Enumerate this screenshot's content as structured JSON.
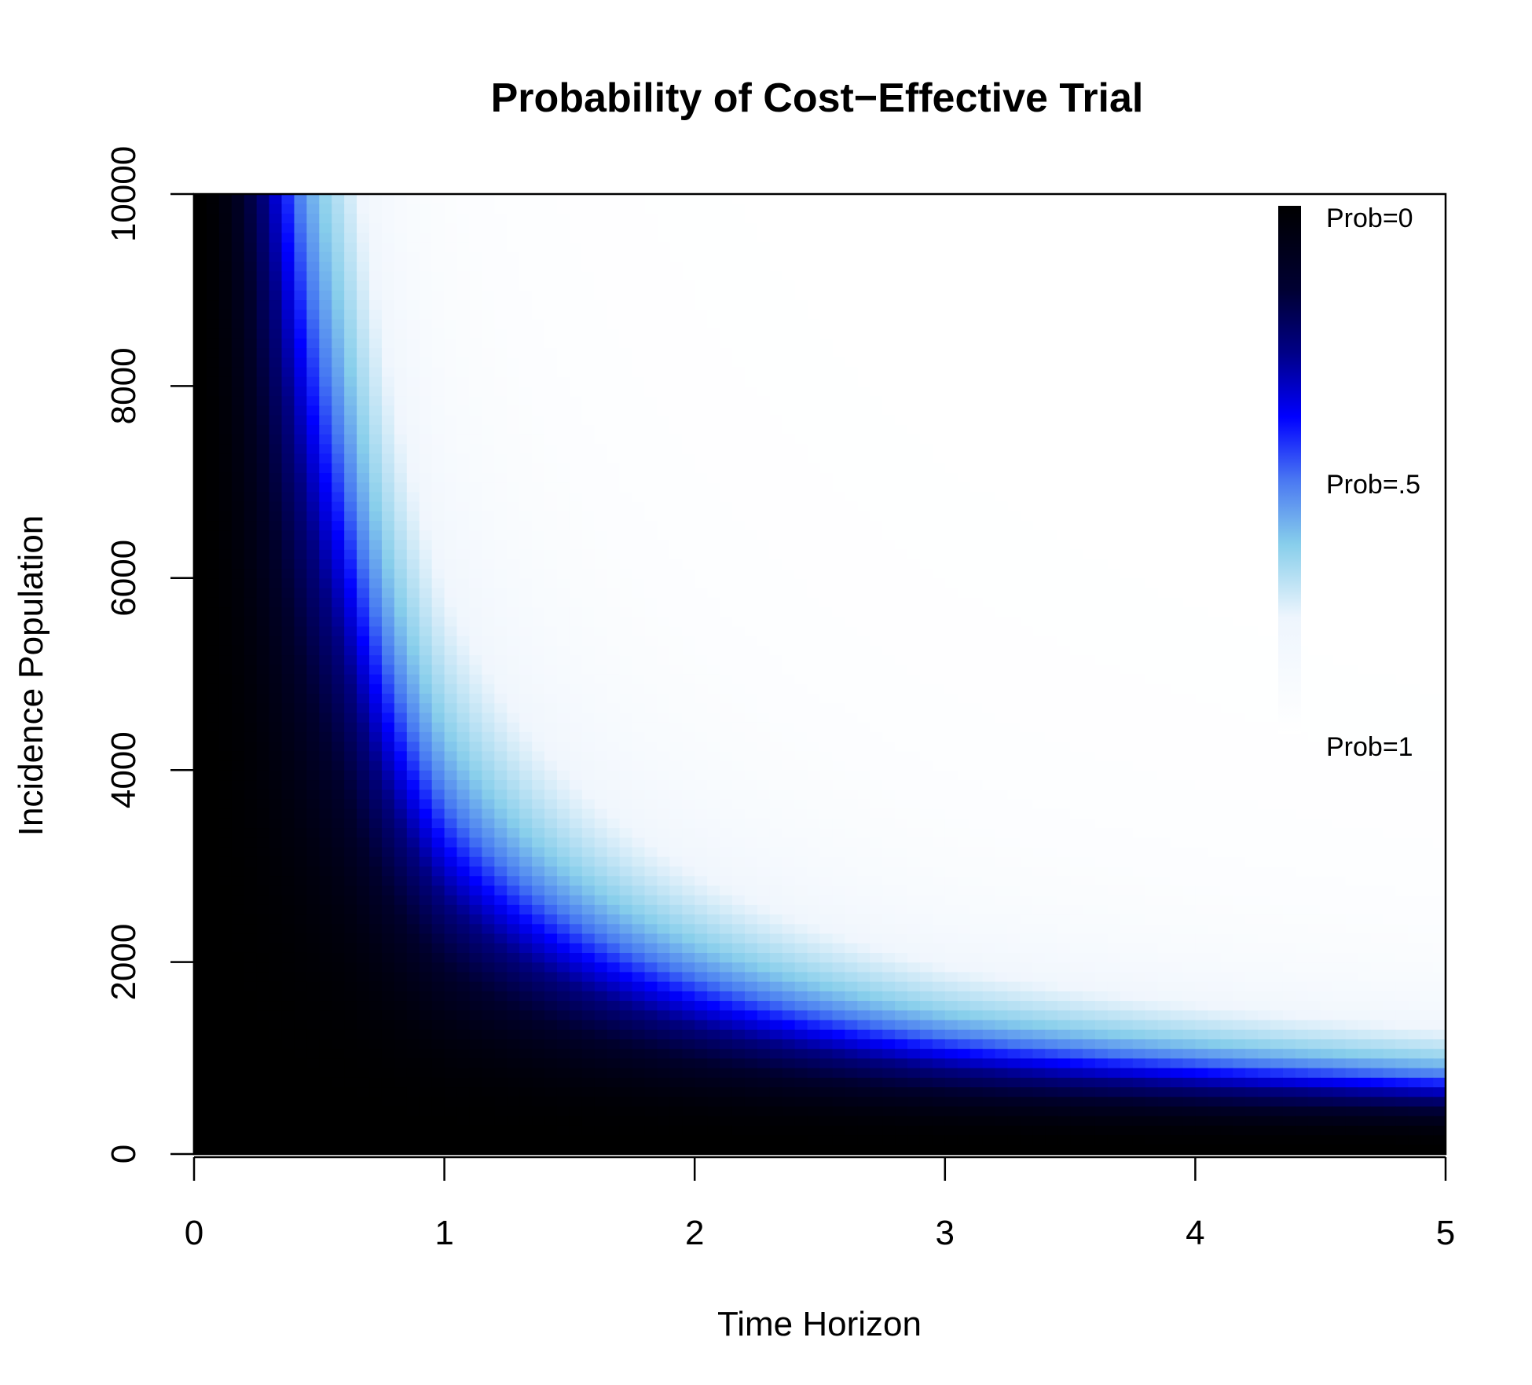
{
  "chart_data": {
    "type": "heatmap",
    "title": "Probability of Cost−Effective Trial",
    "xlabel": "Time Horizon",
    "ylabel": "Incidence Population",
    "xlim": [
      0,
      5
    ],
    "ylim": [
      0,
      10000
    ],
    "xticks": [
      "0",
      "1",
      "2",
      "3",
      "4",
      "5"
    ],
    "yticks": [
      "0",
      "2000",
      "4000",
      "6000",
      "8000",
      "10000"
    ],
    "grid": false,
    "model": {
      "description": "probability of cost-effective trial",
      "prob_half_contour": [
        {
          "x": 0.4,
          "y": 10000
        },
        {
          "x": 0.6,
          "y": 7000
        },
        {
          "x": 1.0,
          "y": 3600
        },
        {
          "x": 2.0,
          "y": 1800
        },
        {
          "x": 3.0,
          "y": 1200
        },
        {
          "x": 5.0,
          "y": 800
        }
      ]
    },
    "grid_resolution": {
      "nx": 100,
      "ny": 100
    },
    "legend": {
      "placement": "top-right",
      "labels": [
        "Prob=0",
        "Prob=.5",
        "Prob=1"
      ],
      "colors": [
        "#000000",
        "#000066",
        "#0000ff",
        "#87ceeb",
        "#f0f8ff",
        "#ffffff"
      ]
    }
  }
}
